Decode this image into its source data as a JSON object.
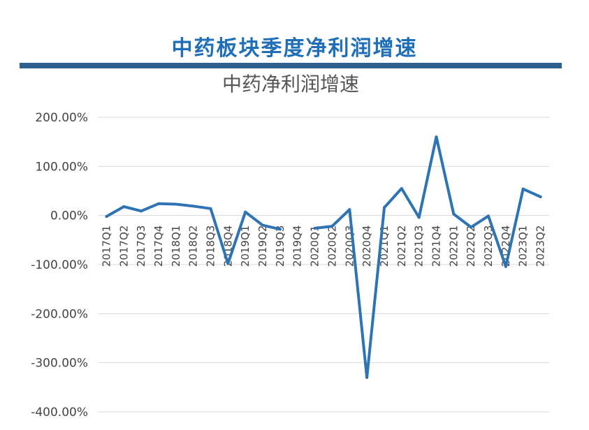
{
  "header": {
    "title": "中药板块季度净利润增速"
  },
  "colors": {
    "header_text": "#1f6fb8",
    "header_bar": "#2f5f8f",
    "line": "#2e74b5",
    "grid": "#d9d9d9"
  },
  "chart_data": {
    "type": "line",
    "title": "中药净利润增速",
    "xlabel": "",
    "ylabel": "",
    "ylim": [
      -400,
      200
    ],
    "ytick_labels": [
      "200.00%",
      "100.00%",
      "0.00%",
      "-100.00%",
      "-200.00%",
      "-300.00%",
      "-400.00%"
    ],
    "categories": [
      "2017Q1",
      "2017Q2",
      "2017Q3",
      "2017Q4",
      "2018Q1",
      "2018Q2",
      "2018Q3",
      "2018Q4",
      "2019Q1",
      "2019Q2",
      "2019Q3",
      "2019Q4",
      "2020Q1",
      "2020Q2",
      "2020Q3",
      "2020Q4",
      "2021Q1",
      "2021Q2",
      "2021Q3",
      "2021Q4",
      "2022Q1",
      "2022Q2",
      "2022Q3",
      "2022Q4",
      "2023Q1",
      "2023Q2"
    ],
    "series": [
      {
        "values": [
          -2,
          18,
          9,
          24,
          23,
          19,
          14,
          -98,
          7,
          -20,
          -28,
          null,
          -26,
          -22,
          12,
          -330,
          16,
          55,
          -4,
          160,
          3,
          -24,
          -1,
          -104,
          54,
          38
        ]
      }
    ],
    "grid": true,
    "legend": "none"
  }
}
